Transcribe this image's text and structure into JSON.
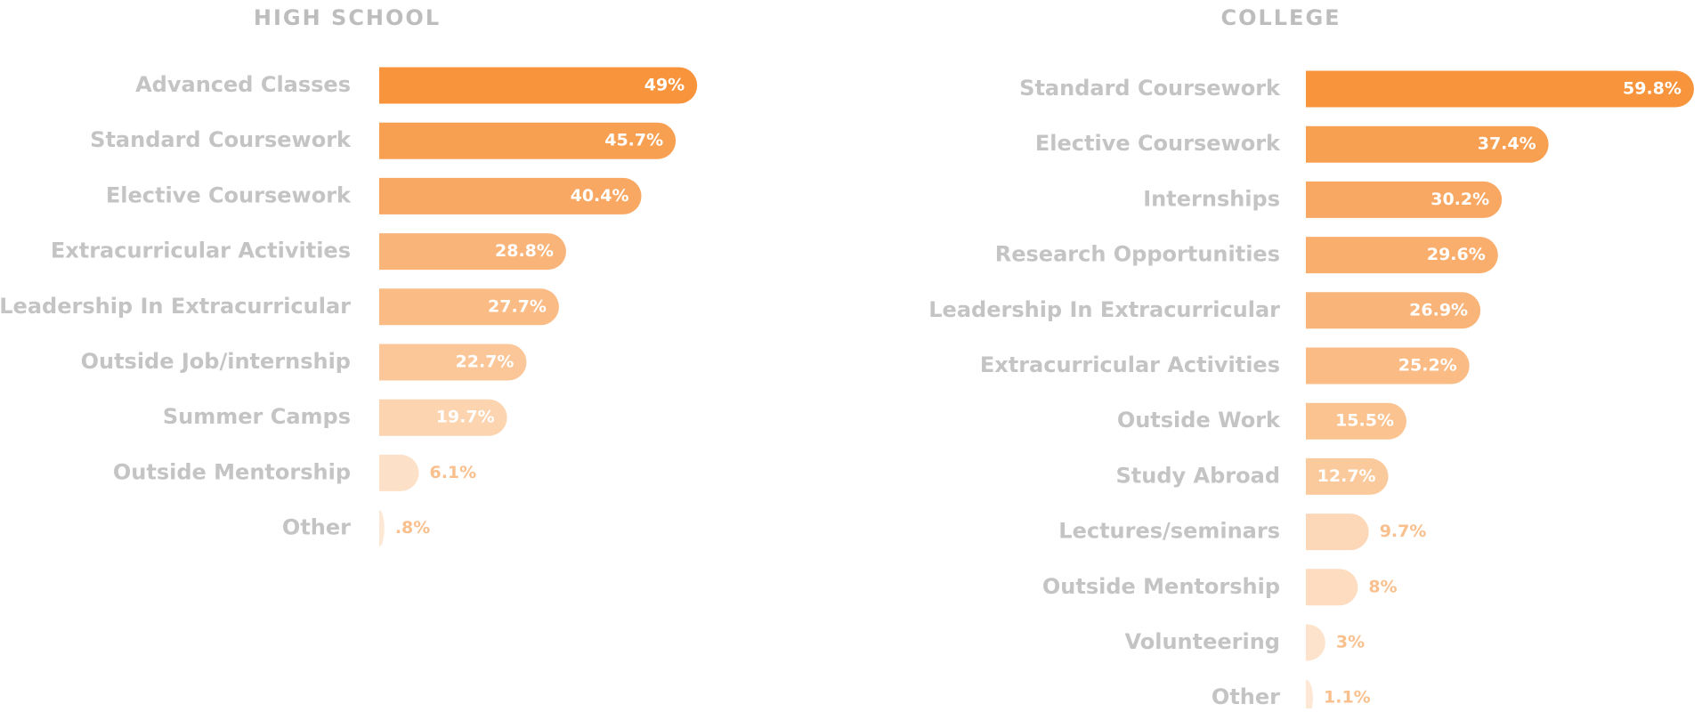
{
  "chart_data": [
    {
      "type": "bar",
      "orientation": "horizontal",
      "title": "HIGH SCHOOL",
      "categories": [
        "Advanced Classes",
        "Standard Coursework",
        "Elective Coursework",
        "Extracurricular Activities",
        "Leadership In Extracurricular",
        "Outside Job/internship",
        "Summer Camps",
        "Outside Mentorship",
        "Other"
      ],
      "values": [
        49,
        45.7,
        40.4,
        28.8,
        27.7,
        22.7,
        19.7,
        6.1,
        0.8
      ],
      "value_labels": [
        "49%",
        "45.7%",
        "40.4%",
        "28.8%",
        "27.7%",
        "22.7%",
        "19.7%",
        "6.1%",
        ".8%"
      ],
      "colors": [
        "#f7943c",
        "#f8a052",
        "#f8a862",
        "#f9b47a",
        "#fabb85",
        "#fbc698",
        "#fcd4b0",
        "#fde0c8",
        "#fde8d6"
      ]
    },
    {
      "type": "bar",
      "orientation": "horizontal",
      "title": "COLLEGE",
      "categories": [
        "Standard Coursework",
        "Elective Coursework",
        "Internships",
        "Research Opportunities",
        "Leadership In Extracurricular",
        "Extracurricular Activities",
        "Outside Work",
        "Study Abroad",
        "Lectures/seminars",
        "Outside Mentorship",
        "Volunteering",
        "Other"
      ],
      "values": [
        59.8,
        37.4,
        30.2,
        29.6,
        26.9,
        25.2,
        15.5,
        12.7,
        9.7,
        8,
        3,
        1.1
      ],
      "value_labels": [
        "59.8%",
        "37.4%",
        "30.2%",
        "29.6%",
        "26.9%",
        "25.2%",
        "15.5%",
        "12.7%",
        "9.7%",
        "8%",
        "3%",
        "1.1%"
      ],
      "colors": [
        "#f7943c",
        "#f8a052",
        "#f8a862",
        "#f9ae6e",
        "#f9b47a",
        "#fabb85",
        "#fbc390",
        "#fbca9c",
        "#fcd8b8",
        "#fddcc0",
        "#fde2cc",
        "#fde8d6"
      ]
    }
  ]
}
